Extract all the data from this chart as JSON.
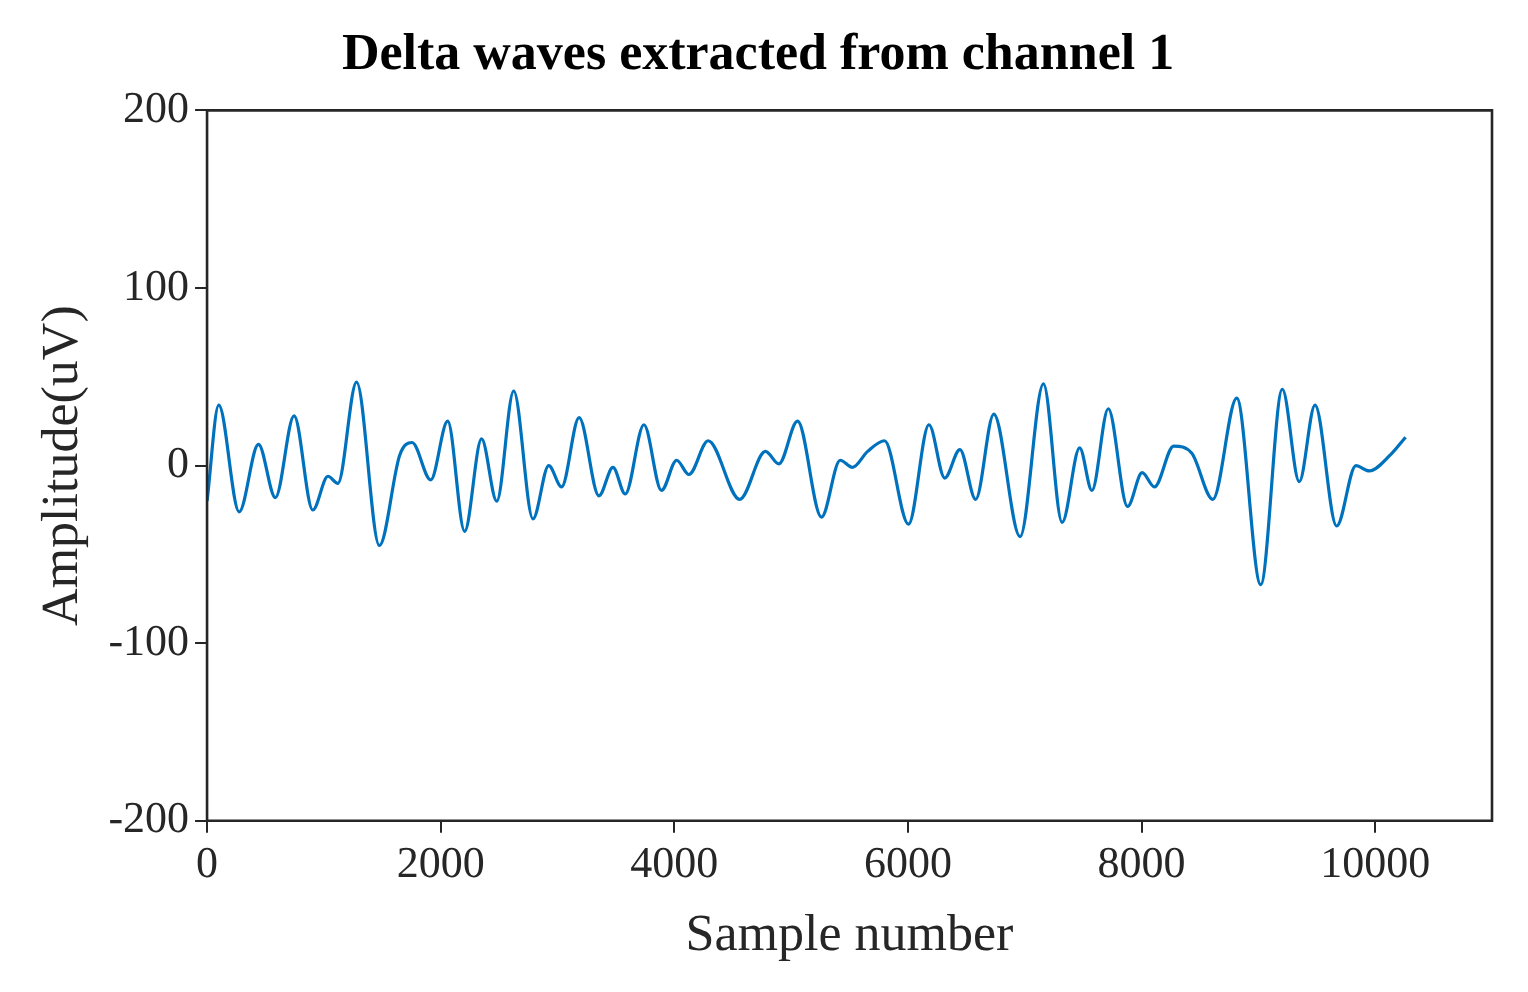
{
  "chart_data": {
    "type": "line",
    "title": "Delta waves extracted from channel 1",
    "xlabel": "Sample number",
    "ylabel": "Amplitude(uV)",
    "x": [
      0,
      100,
      275,
      440,
      585,
      745,
      905,
      1035,
      1120,
      1280,
      1475,
      1650,
      1755,
      1915,
      2060,
      2205,
      2350,
      2480,
      2625,
      2790,
      2925,
      3035,
      3185,
      3355,
      3475,
      3580,
      3740,
      3890,
      4020,
      4125,
      4290,
      4560,
      4780,
      4895,
      5055,
      5260,
      5420,
      5525,
      5655,
      5800,
      6005,
      6180,
      6315,
      6445,
      6580,
      6735,
      6960,
      7160,
      7320,
      7470,
      7575,
      7715,
      7880,
      8005,
      8110,
      8275,
      8430,
      8610,
      8815,
      9020,
      9205,
      9350,
      9485,
      9670,
      9835,
      9950,
      10130,
      10260
    ],
    "series": [
      {
        "color": "#0072bd",
        "values": [
          -20,
          34,
          -26,
          12,
          -18,
          28,
          -25,
          -6,
          -10,
          47,
          -45,
          6,
          13,
          -8,
          25,
          -37,
          15,
          -20,
          42,
          -30,
          0,
          -12,
          27,
          -17,
          -1,
          -16,
          23,
          -14,
          3,
          -5,
          14,
          -19,
          8,
          1,
          25,
          -29,
          3,
          -1,
          8,
          14,
          -33,
          23,
          -7,
          9,
          -19,
          29,
          -40,
          46,
          -32,
          10,
          -14,
          32,
          -23,
          -4,
          -12,
          11,
          7,
          -19,
          38,
          -67,
          43,
          -9,
          34,
          -34,
          0,
          -3,
          6,
          16
        ]
      }
    ],
    "xlim": [
      0,
      11000
    ],
    "xticks": [
      0,
      2000,
      4000,
      6000,
      8000,
      10000
    ],
    "ylim": [
      -200,
      200
    ],
    "yticks": [
      -200,
      -100,
      0,
      100,
      200
    ],
    "grid": false,
    "legend": false,
    "marker": "none",
    "line_style": "solid"
  }
}
